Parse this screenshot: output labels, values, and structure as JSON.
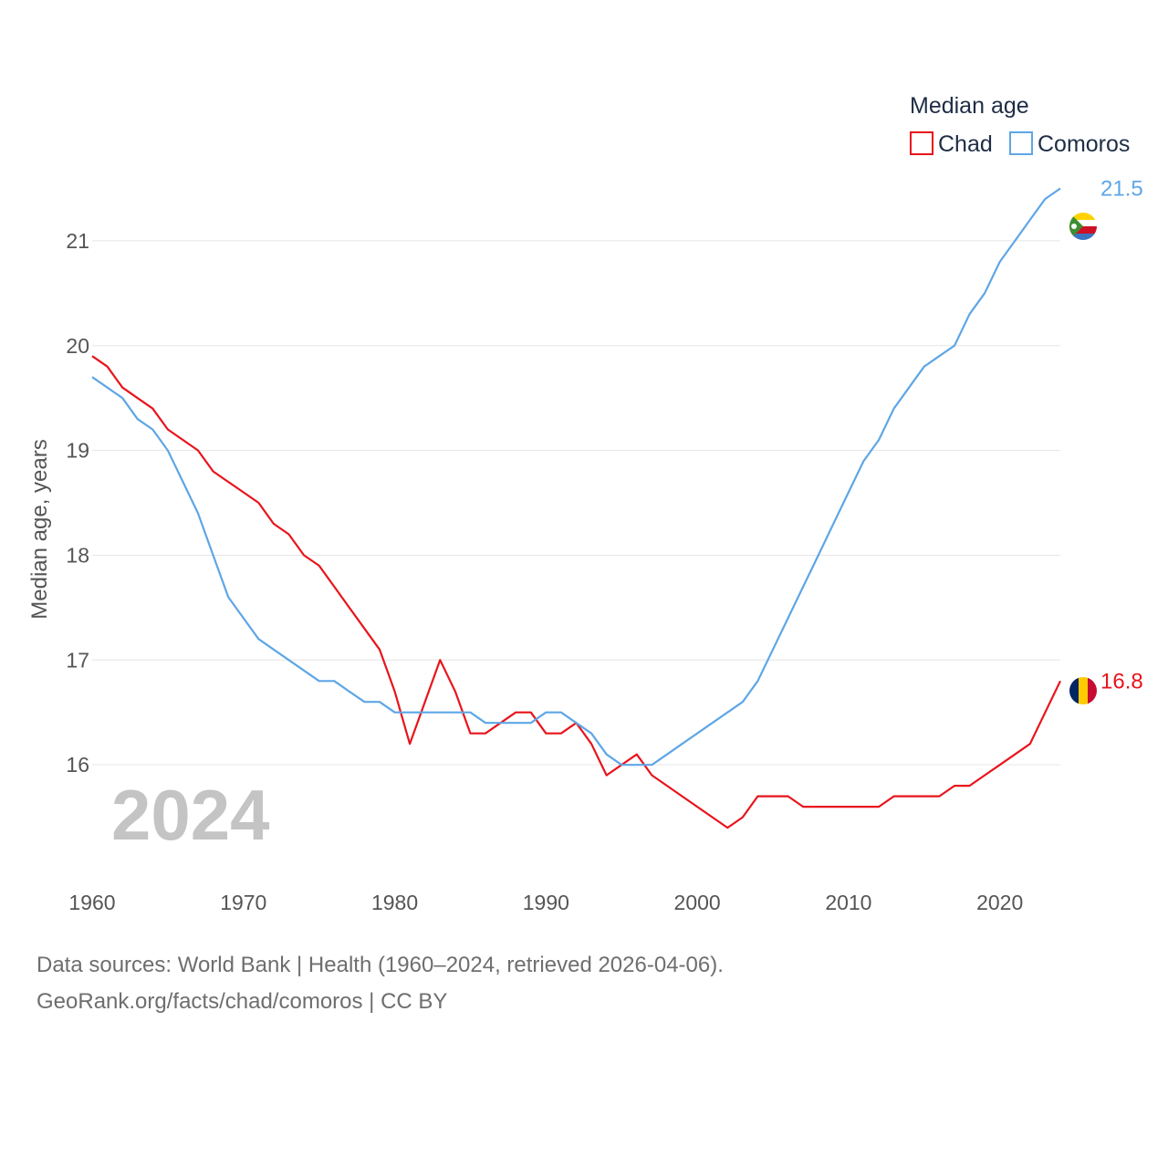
{
  "chart_data": {
    "type": "line",
    "legend_title": "Median age",
    "ylabel": "Median age, years",
    "ylim": [
      15,
      21.6
    ],
    "xlim": [
      1960,
      2024
    ],
    "yticks": [
      16,
      17,
      18,
      19,
      20,
      21
    ],
    "xticks": [
      1960,
      1970,
      1980,
      1990,
      2000,
      2010,
      2020
    ],
    "current_year": "2024",
    "x": [
      1960,
      1961,
      1962,
      1963,
      1964,
      1965,
      1966,
      1967,
      1968,
      1969,
      1970,
      1971,
      1972,
      1973,
      1974,
      1975,
      1976,
      1977,
      1978,
      1979,
      1980,
      1981,
      1982,
      1983,
      1984,
      1985,
      1986,
      1987,
      1988,
      1989,
      1990,
      1991,
      1992,
      1993,
      1994,
      1995,
      1996,
      1997,
      1998,
      1999,
      2000,
      2001,
      2002,
      2003,
      2004,
      2005,
      2006,
      2007,
      2008,
      2009,
      2010,
      2011,
      2012,
      2013,
      2014,
      2015,
      2016,
      2017,
      2018,
      2019,
      2020,
      2021,
      2022,
      2023,
      2024
    ],
    "series": [
      {
        "name": "Chad",
        "color": "#e8141c",
        "end_label": "16.8",
        "values": [
          19.9,
          19.8,
          19.6,
          19.5,
          19.4,
          19.2,
          19.1,
          19.0,
          18.8,
          18.7,
          18.6,
          18.5,
          18.3,
          18.2,
          18.0,
          17.9,
          17.7,
          17.5,
          17.3,
          17.1,
          16.7,
          16.2,
          16.6,
          17.0,
          16.7,
          16.3,
          16.3,
          16.4,
          16.5,
          16.5,
          16.3,
          16.3,
          16.4,
          16.2,
          15.9,
          16.0,
          16.1,
          15.9,
          15.8,
          15.7,
          15.6,
          15.5,
          15.4,
          15.5,
          15.7,
          15.7,
          15.7,
          15.6,
          15.6,
          15.6,
          15.6,
          15.6,
          15.6,
          15.7,
          15.7,
          15.7,
          15.7,
          15.8,
          15.8,
          15.9,
          16.0,
          16.1,
          16.2,
          16.5,
          16.8
        ]
      },
      {
        "name": "Comoros",
        "color": "#5ea6e6",
        "end_label": "21.5",
        "values": [
          19.7,
          19.6,
          19.5,
          19.3,
          19.2,
          19.0,
          18.7,
          18.4,
          18.0,
          17.6,
          17.4,
          17.2,
          17.1,
          17.0,
          16.9,
          16.8,
          16.8,
          16.7,
          16.6,
          16.6,
          16.5,
          16.5,
          16.5,
          16.5,
          16.5,
          16.5,
          16.4,
          16.4,
          16.4,
          16.4,
          16.5,
          16.5,
          16.4,
          16.3,
          16.1,
          16.0,
          16.0,
          16.0,
          16.1,
          16.2,
          16.3,
          16.4,
          16.5,
          16.6,
          16.8,
          17.1,
          17.4,
          17.7,
          18.0,
          18.3,
          18.6,
          18.9,
          19.1,
          19.4,
          19.6,
          19.8,
          19.9,
          20.0,
          20.3,
          20.5,
          20.8,
          21.0,
          21.2,
          21.4,
          21.5
        ]
      }
    ]
  },
  "footer": {
    "line1": "Data sources: World Bank | Health (1960–2024, retrieved 2026-04-06).",
    "line2": "GeoRank.org/facts/chad/comoros | CC BY"
  }
}
